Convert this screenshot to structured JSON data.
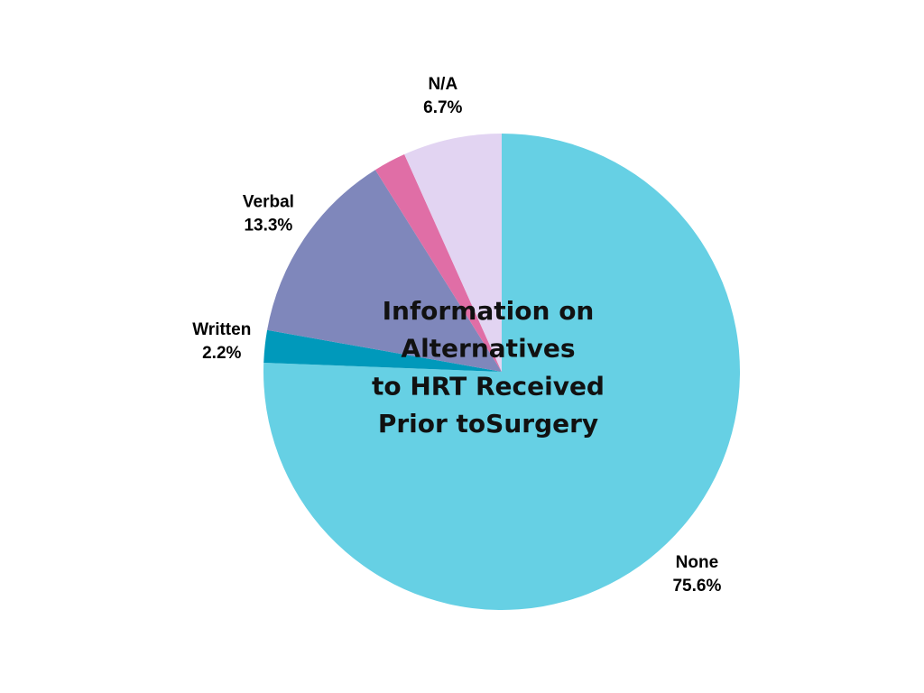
{
  "chart_data": {
    "type": "pie",
    "title": [
      "Information on",
      "Alternatives",
      "to HRT Received",
      "Prior toSurgery"
    ],
    "categories": [
      "None",
      "Written",
      "Verbal",
      null,
      "N/A"
    ],
    "values": [
      75.6,
      2.2,
      13.3,
      2.2,
      6.7
    ],
    "value_labels": [
      "75.6%",
      "2.2%",
      "13.3%",
      null,
      "6.7%"
    ],
    "colors": [
      "#66d0e4",
      "#0099bb",
      "#7f87bb",
      "#e06ea6",
      "#e2d4f2"
    ]
  }
}
